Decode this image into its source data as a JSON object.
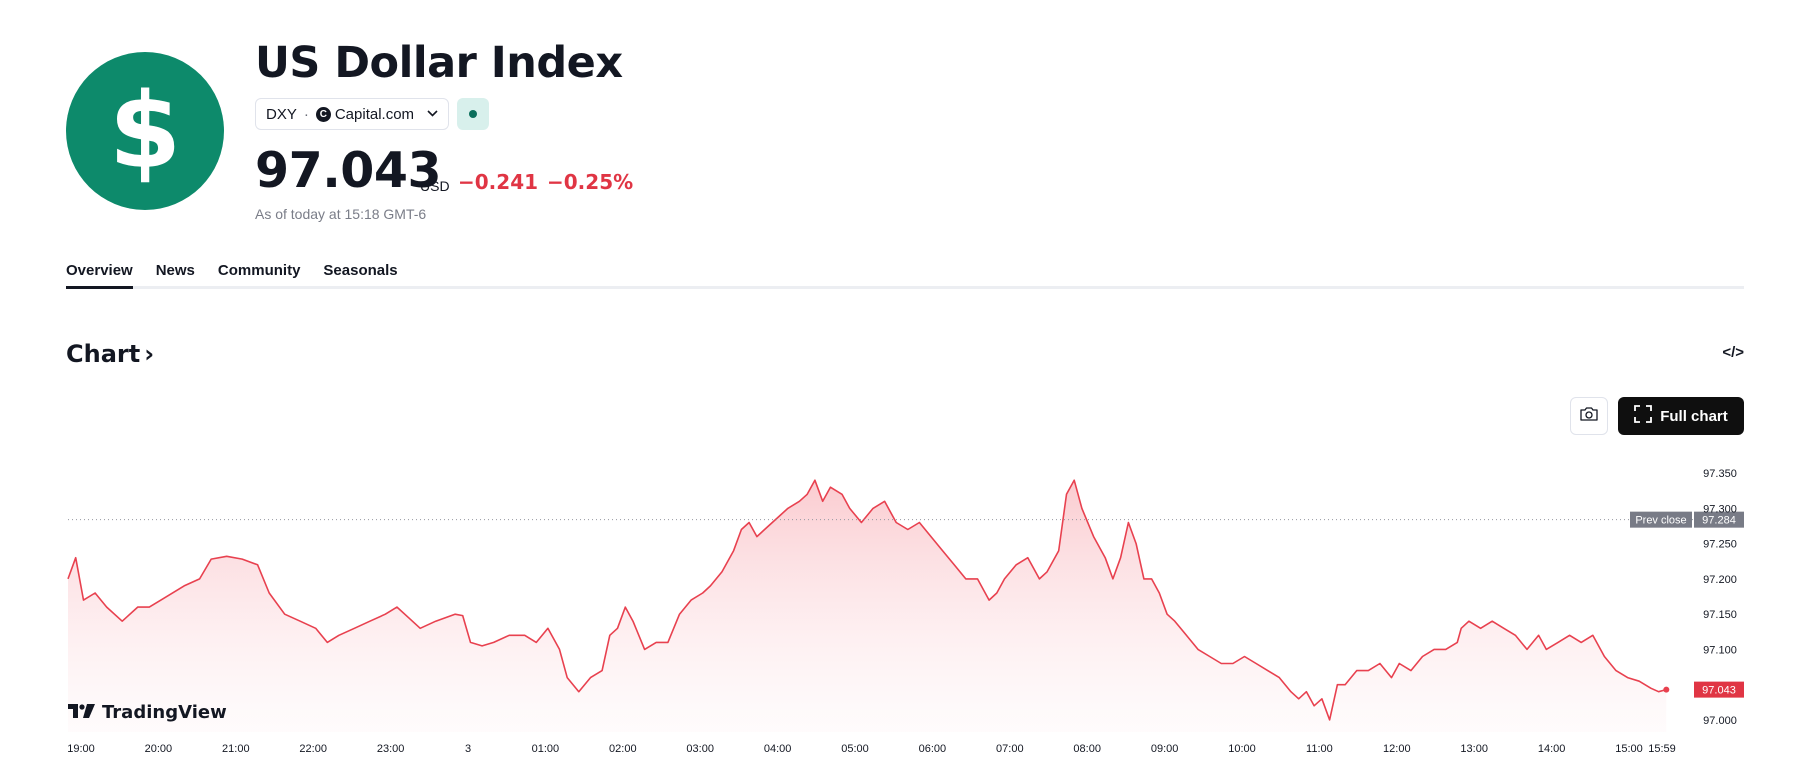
{
  "header": {
    "logo_icon": "dollar-sign-icon",
    "logo_glyph": "$",
    "title": "US Dollar Index",
    "ticker": "DXY",
    "separator": "·",
    "source_icon": "capital-com-icon",
    "source_icon_glyph": "C",
    "source": "Capital.com",
    "dropdown_icon": "chevron-down-icon",
    "market_status_icon": "market-status-dot-icon",
    "price": "97.043",
    "currency": "USD",
    "change": "−0.241",
    "change_percent": "−0.25%",
    "as_of": "As of today at 15:18 GMT-6"
  },
  "tabs": [
    {
      "label": "Overview",
      "active": true
    },
    {
      "label": "News",
      "active": false
    },
    {
      "label": "Community",
      "active": false
    },
    {
      "label": "Seasonals",
      "active": false
    }
  ],
  "chart_section": {
    "heading": "Chart",
    "heading_arrow": "›",
    "embed_label": "</>",
    "screenshot_icon": "camera-icon",
    "full_chart_label": "Full chart",
    "full_chart_icon": "expand-icon",
    "branding": "TradingView",
    "branding_icon": "tradingview-logo-icon"
  },
  "colors": {
    "accent_green": "#0d8a6b",
    "negative_red": "#e03544",
    "line_red": "#e8414f",
    "text": "#131722"
  },
  "chart_data": {
    "type": "area",
    "x_ticks": [
      "19:00",
      "20:00",
      "21:00",
      "22:00",
      "23:00",
      "3",
      "01:00",
      "02:00",
      "03:00",
      "04:00",
      "05:00",
      "06:00",
      "07:00",
      "08:00",
      "09:00",
      "10:00",
      "11:00",
      "12:00",
      "13:00",
      "14:00",
      "15:00",
      "15:59"
    ],
    "y_ticks": [
      "97.350",
      "97.300",
      "97.250",
      "97.200",
      "97.150",
      "97.100",
      "97.000"
    ],
    "ylim": [
      96.99,
      97.37
    ],
    "prev_close_label": "Prev close",
    "prev_close": 97.284,
    "prev_close_text": "97.284",
    "last_value_text": "97.043",
    "series": [
      {
        "points": [
          [
            0.0,
            97.2
          ],
          [
            0.1,
            97.23
          ],
          [
            0.2,
            97.17
          ],
          [
            0.35,
            97.18
          ],
          [
            0.5,
            97.16
          ],
          [
            0.7,
            97.14
          ],
          [
            0.9,
            97.16
          ],
          [
            1.05,
            97.16
          ],
          [
            1.2,
            97.17
          ],
          [
            1.5,
            97.19
          ],
          [
            1.7,
            97.2
          ],
          [
            1.85,
            97.228
          ],
          [
            2.05,
            97.232
          ],
          [
            2.25,
            97.228
          ],
          [
            2.45,
            97.22
          ],
          [
            2.6,
            97.18
          ],
          [
            2.8,
            97.15
          ],
          [
            3.0,
            97.14
          ],
          [
            3.2,
            97.13
          ],
          [
            3.35,
            97.11
          ],
          [
            3.5,
            97.12
          ],
          [
            3.7,
            97.13
          ],
          [
            3.9,
            97.14
          ],
          [
            4.1,
            97.15
          ],
          [
            4.25,
            97.16
          ],
          [
            4.4,
            97.145
          ],
          [
            4.55,
            97.13
          ],
          [
            4.75,
            97.14
          ],
          [
            5.0,
            97.15
          ],
          [
            5.1,
            97.148
          ],
          [
            5.2,
            97.11
          ],
          [
            5.35,
            97.105
          ],
          [
            5.5,
            97.11
          ],
          [
            5.7,
            97.12
          ],
          [
            5.9,
            97.12
          ],
          [
            6.05,
            97.11
          ],
          [
            6.2,
            97.13
          ],
          [
            6.35,
            97.1
          ],
          [
            6.45,
            97.06
          ],
          [
            6.6,
            97.04
          ],
          [
            6.75,
            97.06
          ],
          [
            6.9,
            97.07
          ],
          [
            7.0,
            97.12
          ],
          [
            7.1,
            97.13
          ],
          [
            7.2,
            97.16
          ],
          [
            7.3,
            97.14
          ],
          [
            7.45,
            97.1
          ],
          [
            7.6,
            97.11
          ],
          [
            7.75,
            97.11
          ],
          [
            7.9,
            97.15
          ],
          [
            8.05,
            97.17
          ],
          [
            8.2,
            97.18
          ],
          [
            8.3,
            97.19
          ],
          [
            8.45,
            97.21
          ],
          [
            8.6,
            97.24
          ],
          [
            8.7,
            97.27
          ],
          [
            8.8,
            97.28
          ],
          [
            8.9,
            97.26
          ],
          [
            9.0,
            97.27
          ],
          [
            9.1,
            97.28
          ],
          [
            9.3,
            97.3
          ],
          [
            9.45,
            97.31
          ],
          [
            9.55,
            97.32
          ],
          [
            9.65,
            97.34
          ],
          [
            9.75,
            97.31
          ],
          [
            9.85,
            97.33
          ],
          [
            10.0,
            97.32
          ],
          [
            10.1,
            97.3
          ],
          [
            10.25,
            97.28
          ],
          [
            10.4,
            97.3
          ],
          [
            10.55,
            97.31
          ],
          [
            10.7,
            97.28
          ],
          [
            10.85,
            97.27
          ],
          [
            11.0,
            97.28
          ],
          [
            11.15,
            97.26
          ],
          [
            11.3,
            97.24
          ],
          [
            11.45,
            97.22
          ],
          [
            11.6,
            97.2
          ],
          [
            11.75,
            97.2
          ],
          [
            11.9,
            97.17
          ],
          [
            12.0,
            97.18
          ],
          [
            12.1,
            97.2
          ],
          [
            12.25,
            97.22
          ],
          [
            12.4,
            97.23
          ],
          [
            12.55,
            97.2
          ],
          [
            12.65,
            97.21
          ],
          [
            12.8,
            97.24
          ],
          [
            12.9,
            97.32
          ],
          [
            13.0,
            97.34
          ],
          [
            13.1,
            97.3
          ],
          [
            13.25,
            97.26
          ],
          [
            13.4,
            97.23
          ],
          [
            13.5,
            97.2
          ],
          [
            13.6,
            97.23
          ],
          [
            13.7,
            97.28
          ],
          [
            13.8,
            97.25
          ],
          [
            13.9,
            97.2
          ],
          [
            14.0,
            97.2
          ],
          [
            14.1,
            97.18
          ],
          [
            14.2,
            97.15
          ],
          [
            14.3,
            97.14
          ],
          [
            14.45,
            97.12
          ],
          [
            14.6,
            97.1
          ],
          [
            14.75,
            97.09
          ],
          [
            14.9,
            97.08
          ],
          [
            15.05,
            97.08
          ],
          [
            15.2,
            97.09
          ],
          [
            15.35,
            97.08
          ],
          [
            15.5,
            97.07
          ],
          [
            15.65,
            97.06
          ],
          [
            15.8,
            97.04
          ],
          [
            15.9,
            97.03
          ],
          [
            16.0,
            97.04
          ],
          [
            16.1,
            97.02
          ],
          [
            16.2,
            97.03
          ],
          [
            16.3,
            97.0
          ],
          [
            16.4,
            97.05
          ],
          [
            16.5,
            97.05
          ],
          [
            16.65,
            97.07
          ],
          [
            16.8,
            97.07
          ],
          [
            16.95,
            97.08
          ],
          [
            17.1,
            97.06
          ],
          [
            17.2,
            97.08
          ],
          [
            17.35,
            97.07
          ],
          [
            17.5,
            97.09
          ],
          [
            17.65,
            97.1
          ],
          [
            17.8,
            97.1
          ],
          [
            17.95,
            97.11
          ],
          [
            18.0,
            97.13
          ],
          [
            18.1,
            97.14
          ],
          [
            18.25,
            97.13
          ],
          [
            18.4,
            97.14
          ],
          [
            18.55,
            97.13
          ],
          [
            18.7,
            97.12
          ],
          [
            18.85,
            97.1
          ],
          [
            19.0,
            97.12
          ],
          [
            19.1,
            97.1
          ],
          [
            19.25,
            97.11
          ],
          [
            19.4,
            97.12
          ],
          [
            19.55,
            97.11
          ],
          [
            19.7,
            97.12
          ],
          [
            19.85,
            97.09
          ],
          [
            20.0,
            97.07
          ],
          [
            20.15,
            97.06
          ],
          [
            20.3,
            97.055
          ],
          [
            20.45,
            97.045
          ],
          [
            20.55,
            97.04
          ],
          [
            20.65,
            97.043
          ]
        ]
      }
    ]
  }
}
